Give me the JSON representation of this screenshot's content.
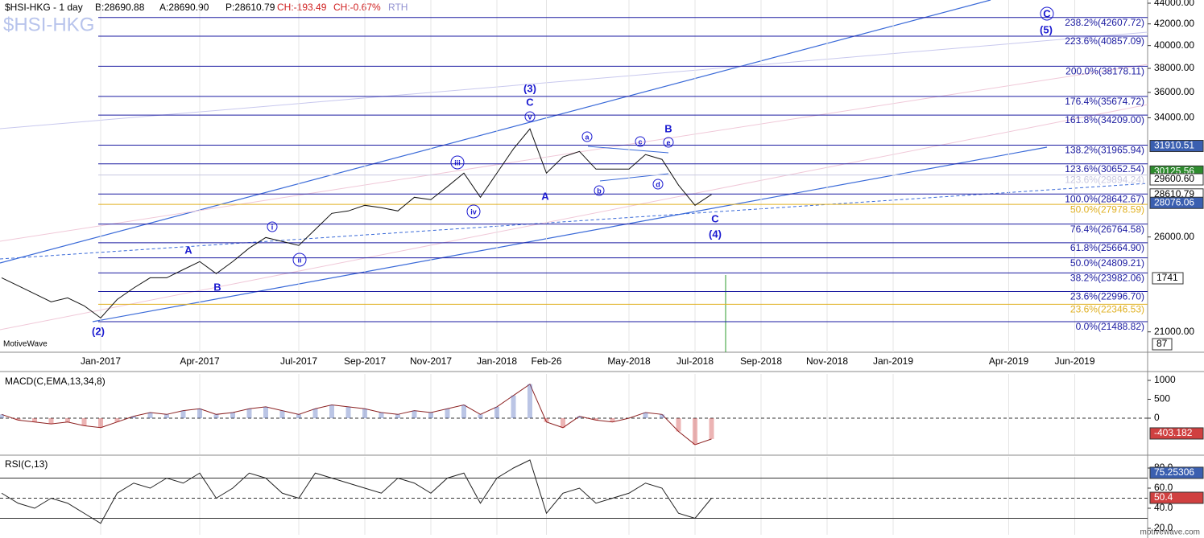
{
  "header": {
    "symbol": "$HSI-HKG - 1 day",
    "bid": "B:28690.88",
    "ask": "A:28690.90",
    "price": "P:28610.79",
    "change": "CH:-193.49",
    "change_pct": "CH:-0.67%",
    "session": "RTH"
  },
  "watermark": "$HSI-HKG",
  "brand": "MotiveWave",
  "footer": "motivewave.com",
  "side_tags": [
    "1741",
    "87"
  ],
  "chart_data": [
    {
      "type": "line",
      "name": "price",
      "log_scale": true,
      "color": "#111111",
      "categories": [
        null,
        null,
        null,
        null,
        null,
        null,
        "Jan-2017",
        null,
        null,
        null,
        null,
        null,
        "Apr-2017",
        null,
        null,
        null,
        null,
        null,
        "Jul-2017",
        null,
        null,
        null,
        "Sep-2017",
        null,
        null,
        null,
        "Nov-2017",
        null,
        null,
        null,
        "Jan-2018",
        null,
        null,
        "Feb-26",
        null,
        null,
        null,
        null,
        "May-2018",
        null,
        null,
        null,
        "Jul-2018",
        null,
        null,
        null,
        "Sep-2018",
        null,
        null,
        null,
        "Nov-2018",
        null,
        null,
        null,
        "Jan-2019",
        null,
        null,
        null,
        null,
        null,
        null,
        "Apr-2019",
        null,
        null,
        null,
        "Jun-2019",
        null,
        null,
        null,
        null
      ],
      "values": [
        23720,
        23300,
        22880,
        22470,
        22670,
        22270,
        21670,
        22590,
        23180,
        23720,
        23720,
        24160,
        24600,
        23940,
        24600,
        25360,
        25970,
        25740,
        25510,
        26450,
        27420,
        27570,
        27920,
        27770,
        27570,
        28430,
        28280,
        29120,
        30020,
        28430,
        30020,
        31700,
        33160,
        30020,
        31130,
        31520,
        30290,
        30290,
        30290,
        31300,
        30960,
        29220,
        27920,
        28610.79,
        null,
        null,
        null,
        null,
        null,
        null,
        null,
        null,
        null,
        null,
        null,
        null,
        null,
        null,
        null,
        null,
        null,
        null,
        null,
        null,
        null,
        null,
        null,
        null,
        null,
        null
      ],
      "ylim": [
        20060,
        44320
      ],
      "yticks": [
        {
          "value": 44000,
          "label": "44000.00"
        },
        {
          "value": 42000,
          "label": "42000.00"
        },
        {
          "value": 40000,
          "label": "40000.00"
        },
        {
          "value": 38000,
          "label": "38000.00"
        },
        {
          "value": 36000,
          "label": "36000.00"
        },
        {
          "value": 34000,
          "label": "34000.00"
        },
        {
          "value": 26000,
          "label": "26000.00"
        },
        {
          "value": 21000,
          "label": "21000.00"
        }
      ],
      "fib_levels": [
        {
          "label": "238.2%(42607.72)",
          "value": 42607.72,
          "color": "#1a1aa0"
        },
        {
          "label": "223.6%(40857.09)",
          "value": 40857.09,
          "color": "#1a1aa0"
        },
        {
          "label": "200.0%(38178.11)",
          "value": 38178.11,
          "color": "#1a1aa0"
        },
        {
          "label": "176.4%(35674.72)",
          "value": 35674.72,
          "color": "#1a1aa0"
        },
        {
          "label": "161.8%(34209.00)",
          "value": 34209.0,
          "color": "#1a1aa0"
        },
        {
          "label": "138.2%(31965.94)",
          "value": 31965.94,
          "color": "#1a1aa0"
        },
        {
          "label": "123.6%(30652.54)",
          "value": 30652.54,
          "color": "#1a1aa0"
        },
        {
          "label": "123.6%(29894.24)",
          "value": 29894.24,
          "color": "#c8c8e0"
        },
        {
          "label": "100.0%(28642.67)",
          "value": 28642.67,
          "color": "#1a1aa0"
        },
        {
          "label": "50.0%(27978.59)",
          "value": 27978.59,
          "color": "#e0b020"
        },
        {
          "label": "76.4%(26764.58)",
          "value": 26764.58,
          "color": "#1a1aa0"
        },
        {
          "label": "61.8%(25664.90)",
          "value": 25664.9,
          "color": "#1a1aa0"
        },
        {
          "label": "50.0%(24809.21)",
          "value": 24809.21,
          "color": "#1a1aa0"
        },
        {
          "label": "38.2%(23982.06)",
          "value": 23982.06,
          "color": "#1a1aa0"
        },
        {
          "label": "23.6%(22996.70)",
          "value": 22996.7,
          "color": "#1a1aa0"
        },
        {
          "label": "23.6%(22346.53)",
          "value": 22346.53,
          "color": "#e0b020"
        },
        {
          "label": "0.0%(21488.82)",
          "value": 21488.82,
          "color": "#1a1aa0"
        }
      ],
      "price_tags": [
        {
          "value": 31910.51,
          "bg": "#3a5fb0",
          "fg": "#ffffff"
        },
        {
          "value": 30125.56,
          "bg": "#2e8b2e",
          "fg": "#ffffff"
        },
        {
          "value": 29600.6,
          "label": "29600.60",
          "bg": "#ffffff",
          "fg": "#000000"
        },
        {
          "value": 28610.79,
          "bg": "#ffffff",
          "fg": "#000000"
        },
        {
          "value": 28076.06,
          "bg": "#3a5fb0",
          "fg": "#ffffff"
        }
      ],
      "waves": [
        {
          "text": "(2)"
        },
        {
          "text": "A"
        },
        {
          "text": "B"
        },
        {
          "text": "i",
          "circled": true
        },
        {
          "text": "ii",
          "circled": true
        },
        {
          "text": "iii",
          "circled": true
        },
        {
          "text": "iv",
          "circled": true
        },
        {
          "text": "(3)"
        },
        {
          "text": "C"
        },
        {
          "text": "v",
          "circled": true
        },
        {
          "text": "A"
        },
        {
          "text": "a",
          "circled": true
        },
        {
          "text": "b",
          "circled": true
        },
        {
          "text": "c",
          "circled": true
        },
        {
          "text": "d",
          "circled": true
        },
        {
          "text": "B"
        },
        {
          "text": "e",
          "circled": true
        },
        {
          "text": "C"
        },
        {
          "text": "(4)"
        },
        {
          "text": "C",
          "circled": true
        },
        {
          "text": "(5)"
        }
      ]
    },
    {
      "type": "line",
      "name": "macd",
      "title": "MACD(C,EMA,13,34,8)",
      "color": "#8b2020",
      "values": [
        100,
        -50,
        -100,
        -150,
        -100,
        -200,
        -250,
        -100,
        50,
        150,
        100,
        200,
        250,
        100,
        150,
        250,
        300,
        200,
        100,
        250,
        350,
        300,
        250,
        150,
        100,
        200,
        150,
        250,
        350,
        100,
        300,
        600,
        900,
        -100,
        -250,
        50,
        -50,
        -100,
        0,
        150,
        100,
        -350,
        -700,
        -550,
        null,
        null,
        null,
        null,
        null,
        null,
        null,
        null,
        null,
        null,
        null,
        null,
        null,
        null,
        null,
        null,
        null,
        null,
        null,
        null,
        null,
        null,
        null,
        null,
        null,
        null
      ],
      "ylim": [
        -957,
        1170
      ],
      "yticks": [
        1000,
        500,
        0
      ],
      "tag": {
        "value": -403.182,
        "bg": "#d04040",
        "fg": "#ffffff"
      }
    },
    {
      "type": "line",
      "name": "rsi",
      "title": "RSI(C,13)",
      "color": "#222222",
      "values": [
        55,
        45,
        40,
        50,
        45,
        35,
        25,
        55,
        65,
        60,
        70,
        65,
        75,
        50,
        60,
        75,
        70,
        55,
        50,
        75,
        70,
        65,
        60,
        55,
        70,
        65,
        55,
        70,
        75,
        45,
        70,
        80,
        88,
        35,
        55,
        60,
        45,
        50,
        55,
        65,
        60,
        35,
        30,
        50,
        null,
        null,
        null,
        null,
        null,
        null,
        null,
        null,
        null,
        null,
        null,
        null,
        null,
        null,
        null,
        null,
        null,
        null,
        null,
        null,
        null,
        null,
        null,
        null,
        null,
        null
      ],
      "ylim": [
        13.6,
        91.2
      ],
      "yticks": [
        {
          "value": 80,
          "label": "80.0"
        },
        {
          "value": 60,
          "label": "60.0"
        },
        {
          "value": 40,
          "label": "40.0"
        },
        {
          "value": 20,
          "label": "20.0"
        }
      ],
      "levels": [
        70,
        50,
        30
      ],
      "tags": [
        {
          "value": 75.25306,
          "bg": "#3a5fb0",
          "fg": "#ffffff"
        },
        {
          "value": 50.4,
          "bg": "#d04040",
          "fg": "#ffffff"
        }
      ]
    }
  ]
}
